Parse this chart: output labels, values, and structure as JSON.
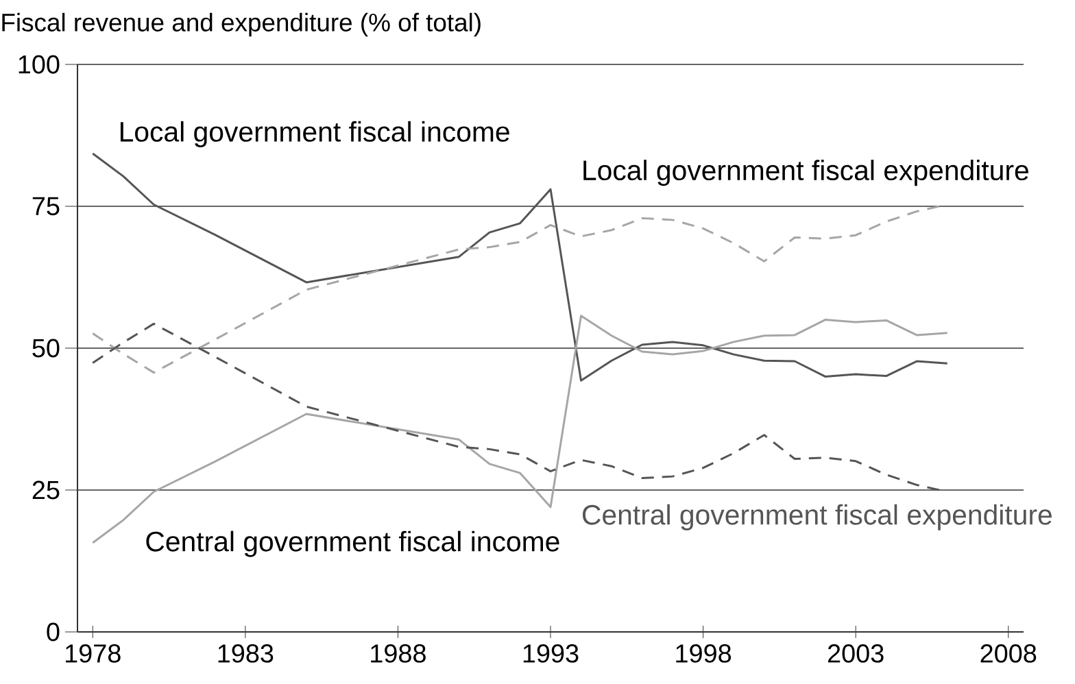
{
  "chart_data": {
    "type": "line",
    "ylabel": "Fiscal revenue and expenditure (% of total)",
    "x": [
      1978,
      1979,
      1980,
      1982,
      1985,
      1990,
      1991,
      1992,
      1993,
      1994,
      1995,
      1996,
      1997,
      1998,
      1999,
      2000,
      2001,
      2002,
      2003,
      2004,
      2005,
      2006
    ],
    "series": [
      {
        "name": "Local government fiscal income",
        "color": "#555555",
        "line_style": "solid",
        "values": [
          84.3,
          80.3,
          75.3,
          70.0,
          61.6,
          66.1,
          70.4,
          72.0,
          78.0,
          44.3,
          47.8,
          50.6,
          51.1,
          50.5,
          48.9,
          47.8,
          47.7,
          45.0,
          45.4,
          45.1,
          47.7,
          47.3
        ]
      },
      {
        "name": "Central government fiscal income",
        "color": "#a6a6a6",
        "line_style": "solid",
        "values": [
          15.7,
          19.7,
          24.7,
          30.0,
          38.4,
          33.9,
          29.6,
          28.0,
          22.0,
          55.7,
          52.2,
          49.4,
          48.9,
          49.5,
          51.1,
          52.2,
          52.3,
          55.0,
          54.6,
          54.9,
          52.3,
          52.7
        ]
      },
      {
        "name": "Local government fiscal expenditure",
        "color": "#a6a6a6",
        "line_style": "dashed",
        "values": [
          52.6,
          49.0,
          45.7,
          51.5,
          60.3,
          67.4,
          67.8,
          68.7,
          71.7,
          69.7,
          70.8,
          72.9,
          72.6,
          71.1,
          68.5,
          65.3,
          69.5,
          69.3,
          69.9,
          72.3,
          74.1,
          75.3
        ]
      },
      {
        "name": "Central government fiscal expenditure",
        "color": "#555555",
        "line_style": "dashed",
        "values": [
          47.4,
          51.0,
          54.3,
          48.5,
          39.7,
          32.6,
          32.2,
          31.3,
          28.3,
          30.3,
          29.2,
          27.1,
          27.4,
          28.9,
          31.5,
          34.7,
          30.5,
          30.7,
          30.1,
          27.7,
          25.9,
          24.7
        ]
      }
    ],
    "xlim": [
      1977.5,
      2008.5
    ],
    "xticks": [
      1978,
      1983,
      1988,
      1993,
      1998,
      2003,
      2008
    ],
    "ylim": [
      0,
      100
    ],
    "yticks": [
      0,
      25,
      50,
      75,
      100
    ],
    "grid": "y",
    "legend": false,
    "marker": "none"
  }
}
